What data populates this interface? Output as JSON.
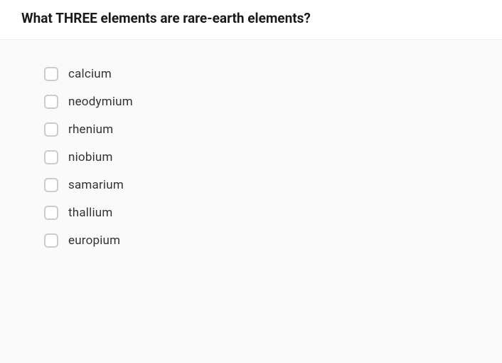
{
  "question": {
    "text": "What THREE elements are rare-earth elements?"
  },
  "options": [
    {
      "label": "calcium",
      "checked": false
    },
    {
      "label": "neodymium",
      "checked": false
    },
    {
      "label": "rhenium",
      "checked": false
    },
    {
      "label": "niobium",
      "checked": false
    },
    {
      "label": "samarium",
      "checked": false
    },
    {
      "label": "thallium",
      "checked": false
    },
    {
      "label": "europium",
      "checked": false
    }
  ],
  "colors": {
    "background": "#fafafa",
    "header_background": "#ffffff",
    "text_primary": "#1a1a1a",
    "text_option": "#333333",
    "checkbox_border": "#cccccc"
  }
}
